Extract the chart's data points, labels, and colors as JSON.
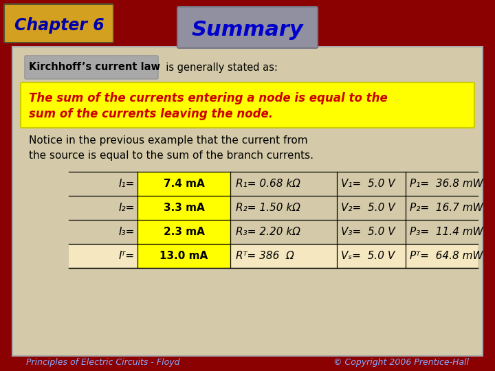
{
  "title": "Summary",
  "chapter": "Chapter 6",
  "bg_color": "#d4c9a8",
  "outer_bg": "#8b0000",
  "chapter_bg": "#d4a020",
  "chapter_text_color": "#0000aa",
  "summary_bg": "#9090a0",
  "summary_text_color": "#0000cc",
  "kcl_box_text": "Kirchhoff’s current law",
  "kcl_box_bg": "#a8a8a8",
  "kcl_rest": "  is generally stated as:",
  "highlight_box_bg": "#ffff00",
  "highlight_box_border": "#cccc00",
  "highlight_text_color": "#cc0000",
  "highlight_line1": "The sum of the currents entering a node is equal to the",
  "highlight_line2": "sum of the currents leaving the node.",
  "notice_line1": "Notice in the previous example that the current from",
  "notice_line2": "the source is equal to the sum of the branch currents.",
  "table_col0": [
    "I₁=",
    "I₂=",
    "I₃=",
    "Iᵀ="
  ],
  "table_col1": [
    "7.4 mA",
    "3.3 mA",
    "2.3 mA",
    "13.0 mA"
  ],
  "table_col2": [
    "R₁= 0.68 kΩ",
    "R₂= 1.50 kΩ",
    "R₃= 2.20 kΩ",
    "Rᵀ= 386  Ω"
  ],
  "table_col3": [
    "V₁=  5.0 V",
    "V₂=  5.0 V",
    "V₃=  5.0 V",
    "Vₛ=  5.0 V"
  ],
  "table_col4": [
    "P₁=  36.8 mW",
    "P₂=  16.7 mW",
    "P₃=  11.4 mW",
    "Pᵀ=  64.8 mW"
  ],
  "footer_left": "Principles of Electric Circuits - Floyd",
  "footer_right": "© Copyright 2006 Prentice-Hall",
  "footer_color": "#88aaff",
  "table_col1_highlight_bg": "#ffff00",
  "table_last_row_bg": "#f5e8c0"
}
